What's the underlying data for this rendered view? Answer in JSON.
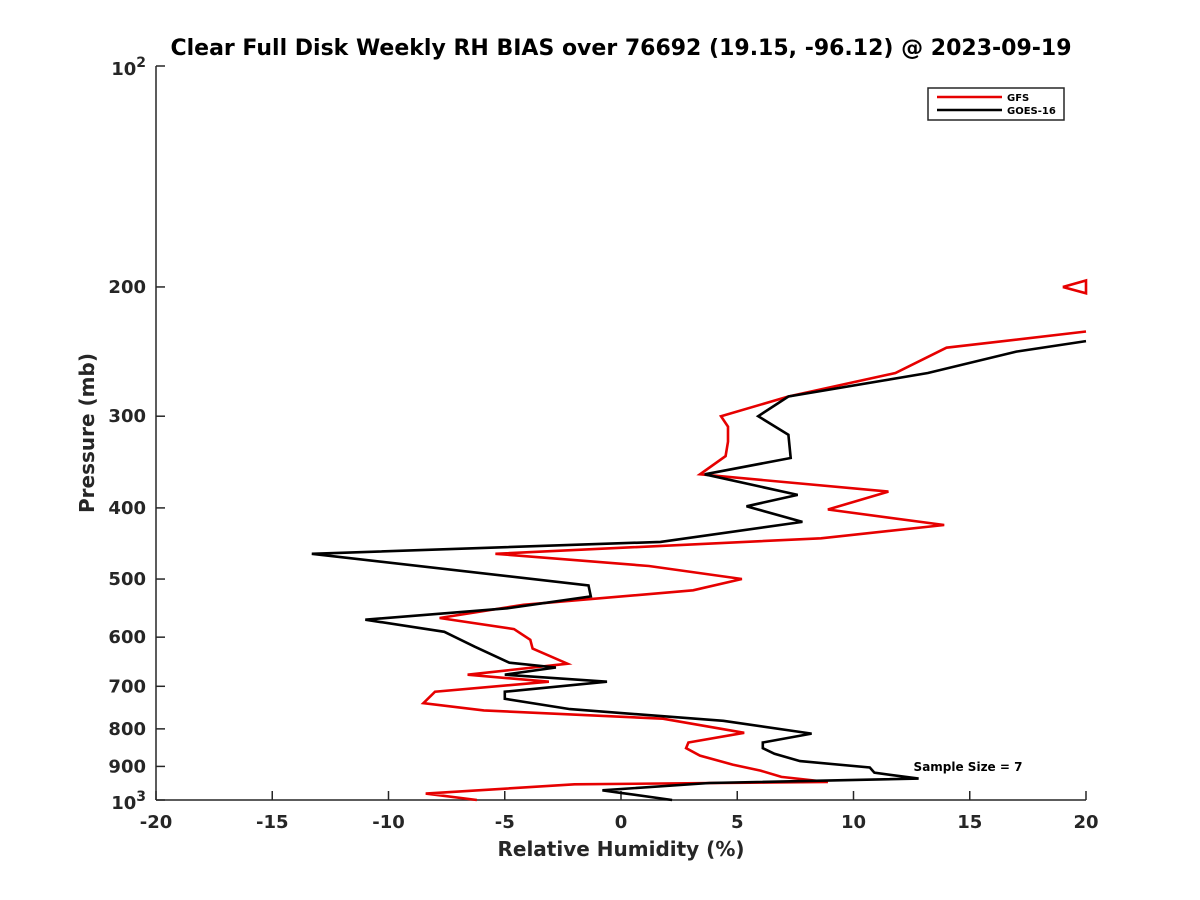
{
  "chart_data": {
    "type": "line",
    "title": "Clear Full Disk Weekly RH BIAS over 76692 (19.15, -96.12) @ 2023-09-19",
    "xlabel": "Relative Humidity (%)",
    "ylabel": "Pressure (mb)",
    "xlim": [
      -20,
      20
    ],
    "ylim": [
      100,
      1000
    ],
    "yscale": "log",
    "y_reversed": true,
    "grid": false,
    "legend_position": "top-right",
    "x_tick_labels": [
      "-20",
      "-15",
      "-10",
      "-5",
      "0",
      "5",
      "10",
      "15",
      "20"
    ],
    "x_ticks": [
      -20,
      -15,
      -10,
      -5,
      0,
      5,
      10,
      15,
      20
    ],
    "y_ticks": [
      200,
      300,
      400,
      500,
      600,
      700,
      800,
      900
    ],
    "y_tick_labels": [
      "200",
      "300",
      "400",
      "500",
      "600",
      "700",
      "800",
      "900"
    ],
    "y_decade_labels": [
      {
        "value": 100,
        "base": "10",
        "exp": "2"
      },
      {
        "value": 1000,
        "base": "10",
        "exp": "3"
      }
    ],
    "annotation": "Sample Size = 7",
    "series": [
      {
        "name": "GFS",
        "color": "#e60000",
        "points": [
          {
            "x": 19.0,
            "p": 200
          },
          {
            "x": 20.0,
            "p": 196
          },
          {
            "x": 20.0,
            "p": 204
          },
          {
            "x": 19.0,
            "p": 200
          },
          {
            "x": null,
            "p": null
          },
          {
            "x": 20.0,
            "p": 230
          },
          {
            "x": 14.0,
            "p": 242
          },
          {
            "x": 11.8,
            "p": 262
          },
          {
            "x": 7.2,
            "p": 282
          },
          {
            "x": 4.3,
            "p": 300
          },
          {
            "x": 4.6,
            "p": 310
          },
          {
            "x": 4.6,
            "p": 325
          },
          {
            "x": 4.5,
            "p": 340
          },
          {
            "x": 3.4,
            "p": 360
          },
          {
            "x": 11.5,
            "p": 380
          },
          {
            "x": 8.9,
            "p": 402
          },
          {
            "x": 13.9,
            "p": 422
          },
          {
            "x": 8.6,
            "p": 440
          },
          {
            "x": -5.4,
            "p": 462
          },
          {
            "x": 1.2,
            "p": 480
          },
          {
            "x": 5.2,
            "p": 500
          },
          {
            "x": 3.1,
            "p": 518
          },
          {
            "x": -4.2,
            "p": 542
          },
          {
            "x": -7.8,
            "p": 565
          },
          {
            "x": -4.6,
            "p": 585
          },
          {
            "x": -3.9,
            "p": 605
          },
          {
            "x": -3.8,
            "p": 622
          },
          {
            "x": -2.3,
            "p": 652
          },
          {
            "x": -6.6,
            "p": 675
          },
          {
            "x": -3.1,
            "p": 690
          },
          {
            "x": -8.0,
            "p": 712
          },
          {
            "x": -8.5,
            "p": 738
          },
          {
            "x": -5.9,
            "p": 755
          },
          {
            "x": 1.8,
            "p": 775
          },
          {
            "x": 5.3,
            "p": 810
          },
          {
            "x": 2.9,
            "p": 835
          },
          {
            "x": 2.8,
            "p": 850
          },
          {
            "x": 3.4,
            "p": 870
          },
          {
            "x": 4.8,
            "p": 895
          },
          {
            "x": 6.0,
            "p": 912
          },
          {
            "x": 6.9,
            "p": 930
          },
          {
            "x": 8.9,
            "p": 945
          },
          {
            "x": -2.0,
            "p": 952
          },
          {
            "x": -8.4,
            "p": 980
          },
          {
            "x": -6.2,
            "p": 1000
          }
        ]
      },
      {
        "name": "GOES-16",
        "color": "#000000",
        "points": [
          {
            "x": 20.0,
            "p": 237
          },
          {
            "x": 17.0,
            "p": 245
          },
          {
            "x": 13.2,
            "p": 262
          },
          {
            "x": 7.2,
            "p": 282
          },
          {
            "x": 5.9,
            "p": 300
          },
          {
            "x": 7.2,
            "p": 318
          },
          {
            "x": 7.3,
            "p": 342
          },
          {
            "x": 3.6,
            "p": 360
          },
          {
            "x": 7.6,
            "p": 384
          },
          {
            "x": 5.4,
            "p": 398
          },
          {
            "x": 7.8,
            "p": 418
          },
          {
            "x": 1.7,
            "p": 445
          },
          {
            "x": -13.3,
            "p": 462
          },
          {
            "x": -1.4,
            "p": 510
          },
          {
            "x": -1.3,
            "p": 528
          },
          {
            "x": -4.9,
            "p": 548
          },
          {
            "x": -11.0,
            "p": 568
          },
          {
            "x": -7.6,
            "p": 590
          },
          {
            "x": -6.3,
            "p": 618
          },
          {
            "x": -4.8,
            "p": 650
          },
          {
            "x": -2.8,
            "p": 660
          },
          {
            "x": -5.0,
            "p": 675
          },
          {
            "x": -0.6,
            "p": 690
          },
          {
            "x": -5.0,
            "p": 712
          },
          {
            "x": -5.0,
            "p": 728
          },
          {
            "x": -2.2,
            "p": 752
          },
          {
            "x": 4.4,
            "p": 780
          },
          {
            "x": 8.2,
            "p": 812
          },
          {
            "x": 6.1,
            "p": 835
          },
          {
            "x": 6.1,
            "p": 850
          },
          {
            "x": 6.6,
            "p": 865
          },
          {
            "x": 7.7,
            "p": 885
          },
          {
            "x": 10.7,
            "p": 903
          },
          {
            "x": 10.9,
            "p": 918
          },
          {
            "x": 12.8,
            "p": 935
          },
          {
            "x": 3.8,
            "p": 948
          },
          {
            "x": -0.8,
            "p": 970
          },
          {
            "x": 0.0,
            "p": 978
          },
          {
            "x": 2.2,
            "p": 1000
          }
        ]
      }
    ]
  }
}
